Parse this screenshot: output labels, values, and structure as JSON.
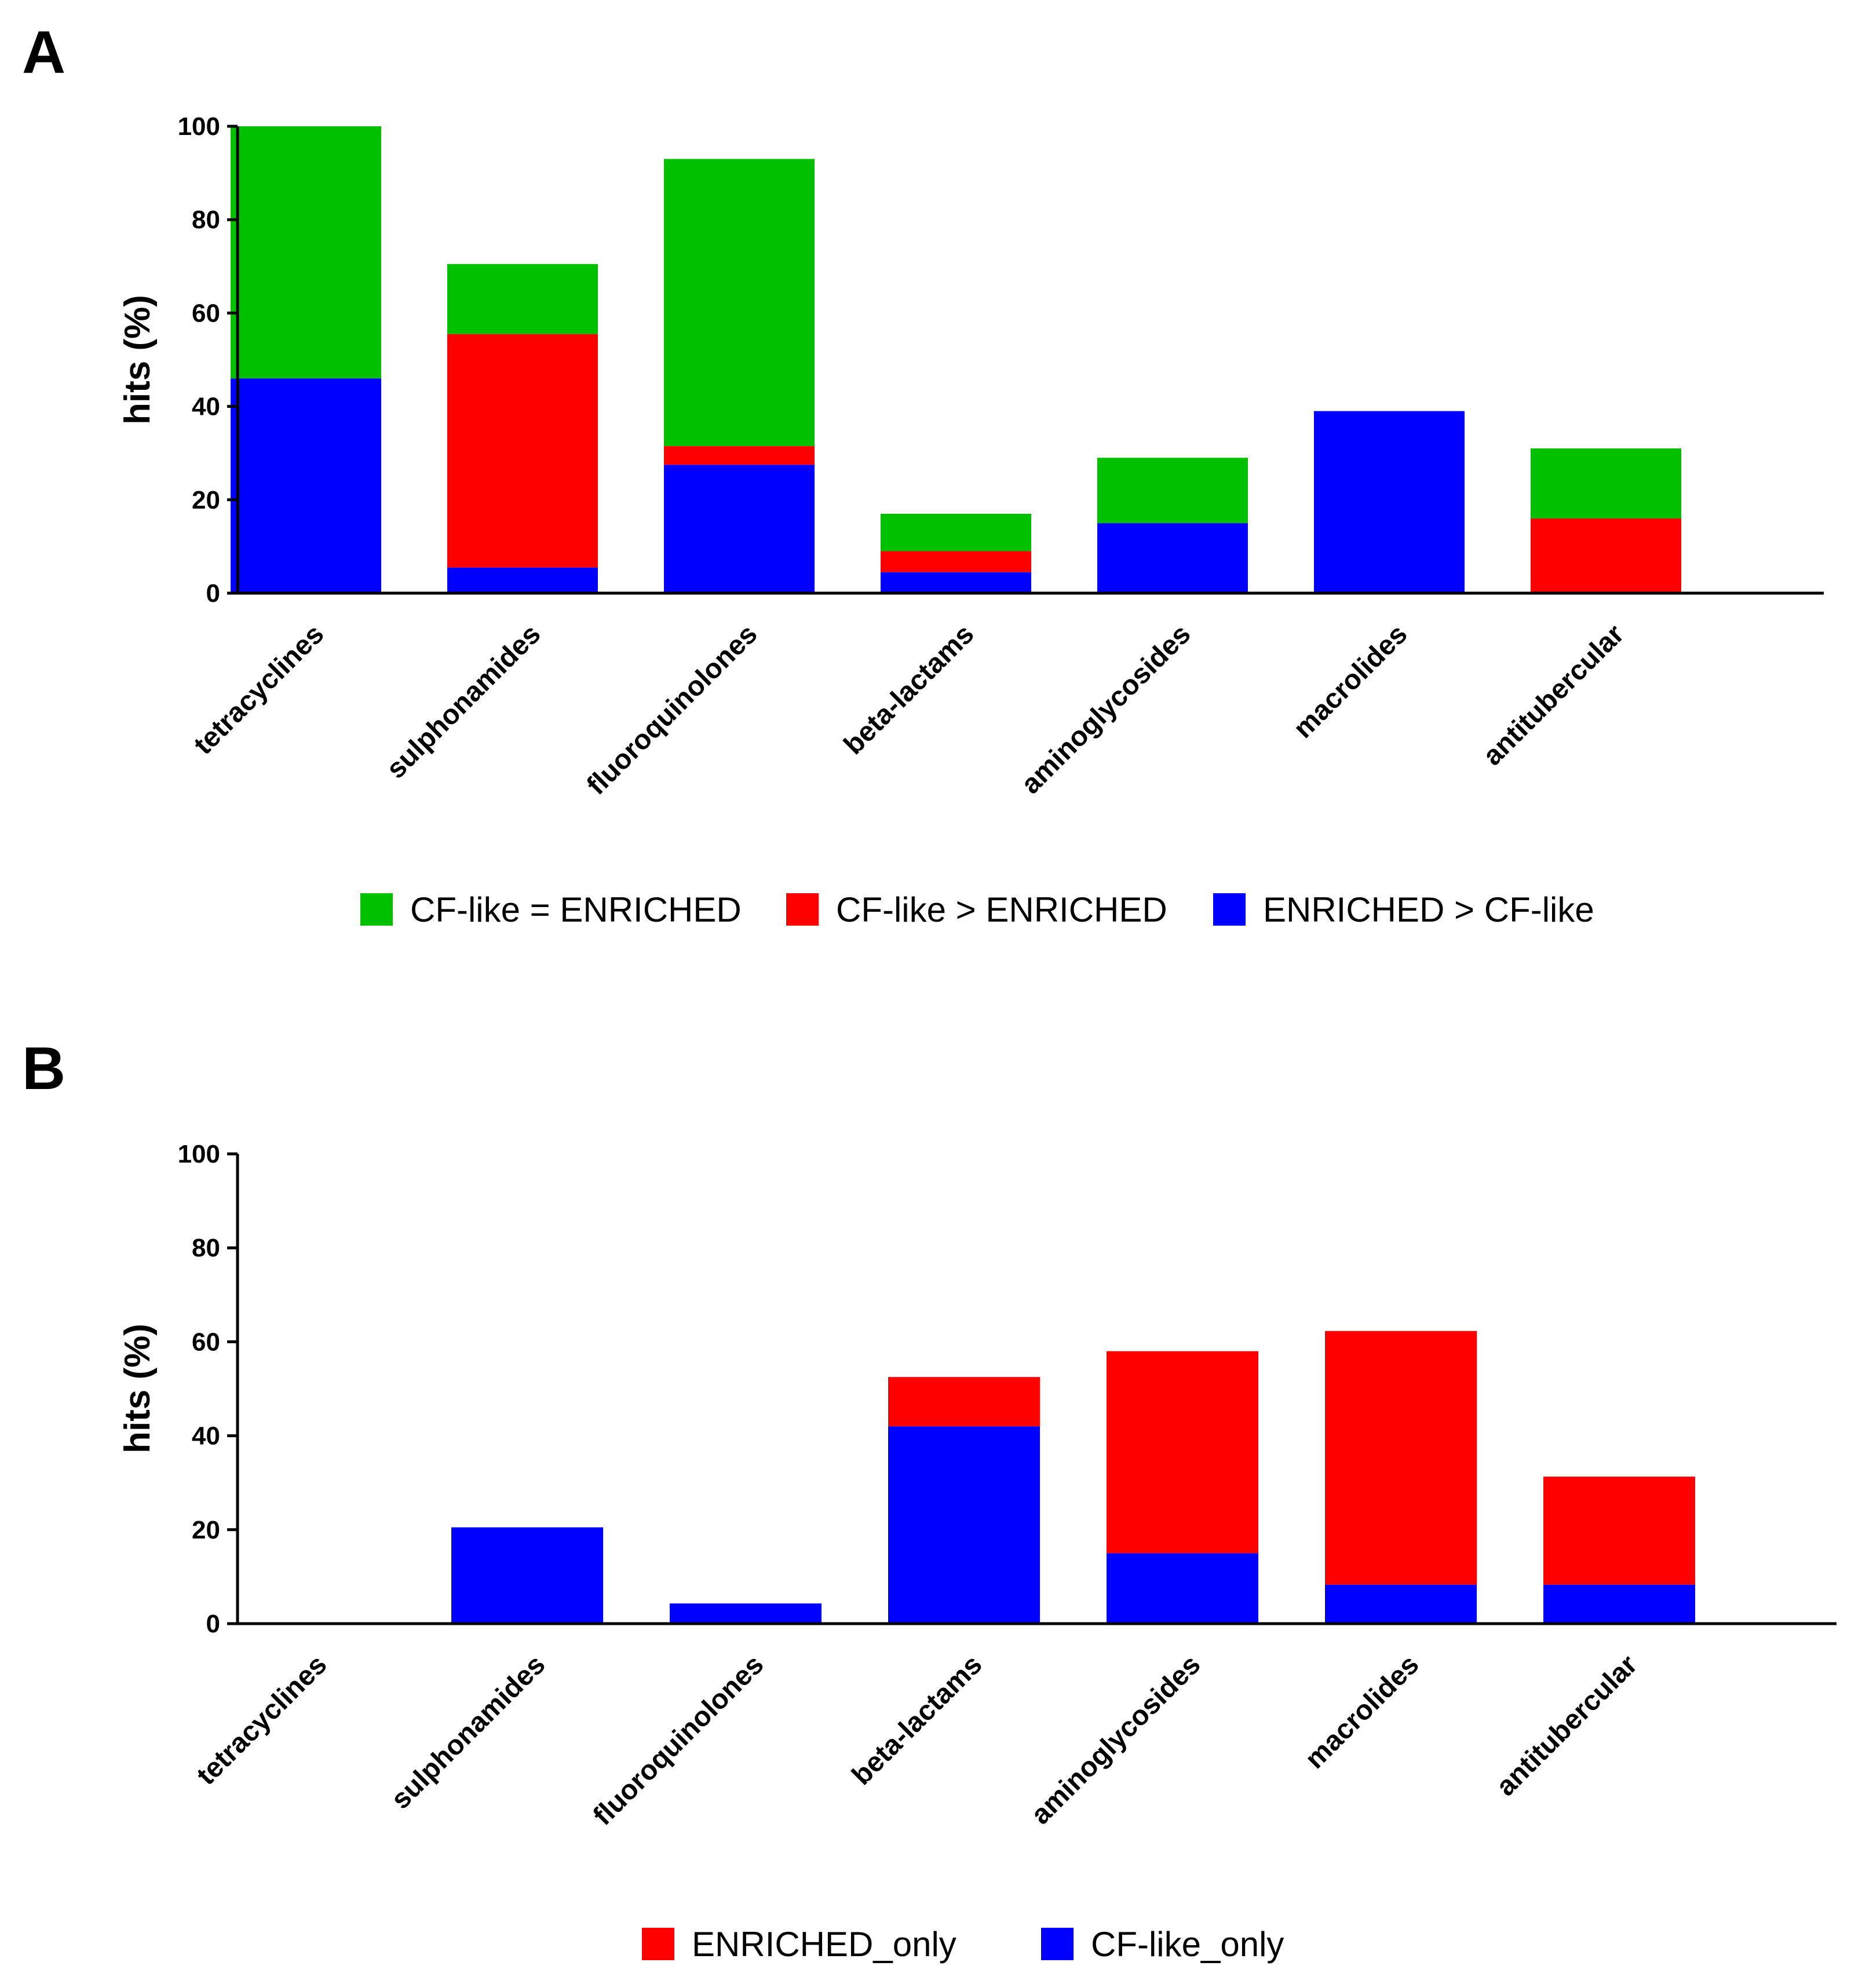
{
  "chart_data": [
    {
      "panel": "A",
      "type": "bar",
      "stacked": true,
      "ylabel": "hits (%)",
      "xlabel": "",
      "ylim": [
        0,
        100
      ],
      "yticks": [
        0,
        20,
        40,
        60,
        80,
        100
      ],
      "categories": [
        "tetracyclines",
        "sulphonamides",
        "fluoroquinolones",
        "beta-lactams",
        "aminoglycosides",
        "macrolides",
        "antitubercular"
      ],
      "legend_position": "bottom-center",
      "series": [
        {
          "name": "ENRICHED > CF-like",
          "color": "#0000ff",
          "values": [
            46,
            5.5,
            27.5,
            4.5,
            15,
            39,
            0
          ]
        },
        {
          "name": "CF-like > ENRICHED",
          "color": "#ff0000",
          "values": [
            0,
            50,
            4,
            4.5,
            0,
            0,
            16
          ]
        },
        {
          "name": "CF-like = ENRICHED",
          "color": "#00c000",
          "values": [
            54,
            15,
            61.5,
            8,
            14,
            0,
            15
          ]
        }
      ],
      "legend_order": [
        "CF-like = ENRICHED",
        "CF-like > ENRICHED",
        "ENRICHED > CF-like"
      ]
    },
    {
      "panel": "B",
      "type": "bar",
      "stacked": true,
      "ylabel": "hits (%)",
      "xlabel": "",
      "ylim": [
        0,
        100
      ],
      "yticks": [
        0,
        20,
        40,
        60,
        80,
        100
      ],
      "categories": [
        "tetracyclines",
        "sulphonamides",
        "fluoroquinolones",
        "beta-lactams",
        "aminoglycosides",
        "macrolides",
        "antitubercular"
      ],
      "legend_position": "bottom-center",
      "series": [
        {
          "name": "CF-like_only",
          "color": "#0000ff",
          "values": [
            0,
            20.5,
            4.3,
            42,
            15,
            8.3,
            8.3
          ]
        },
        {
          "name": "ENRICHED_only",
          "color": "#ff0000",
          "values": [
            0,
            0,
            0,
            10.5,
            43,
            54,
            23
          ]
        }
      ],
      "legend_order": [
        "ENRICHED_only",
        "CF-like_only"
      ]
    }
  ]
}
